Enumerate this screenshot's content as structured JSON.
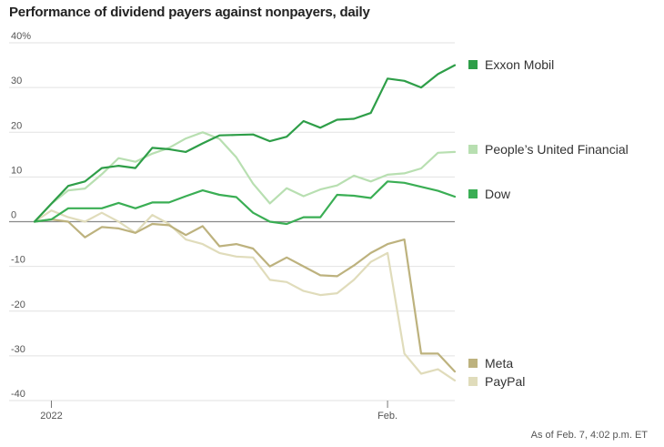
{
  "chart_data": {
    "type": "line",
    "title": "Performance of dividend payers against nonpayers, daily",
    "footnote": "As of Feb. 7, 4:02 p.m. ET",
    "ylim": [
      -40,
      40
    ],
    "yticks": [
      40,
      30,
      20,
      10,
      0,
      -10,
      -20,
      -30,
      -40
    ],
    "ytick_labels": [
      "40%",
      "30",
      "20",
      "10",
      "0",
      "-10",
      "-20",
      "-30",
      "-40"
    ],
    "xticks": [
      {
        "label": "2022",
        "index": 1
      },
      {
        "label": "Feb.",
        "index": 21
      }
    ],
    "x_count": 26,
    "series": [
      {
        "name": "Exxon Mobil",
        "color": "#2e9e48",
        "values": [
          0,
          4,
          8,
          9,
          12,
          12.5,
          12,
          16.5,
          16.2,
          15.6,
          17.5,
          19.3,
          19.4,
          19.5,
          18,
          19,
          22.5,
          21,
          22.8,
          23,
          24.3,
          32,
          31.5,
          30,
          33,
          35
        ]
      },
      {
        "name": "People’s United Financial",
        "color": "#b8dfb1",
        "values": [
          0,
          4,
          7,
          7.4,
          10.6,
          14.2,
          13.4,
          15.2,
          16.5,
          18.6,
          20,
          18.5,
          14.4,
          8.5,
          4.1,
          7.5,
          5.7,
          7.2,
          8.1,
          10.3,
          9,
          10.5,
          10.8,
          11.9,
          15.4,
          15.6
        ]
      },
      {
        "name": "Dow",
        "color": "#3aae54",
        "values": [
          0,
          0.5,
          3,
          3,
          3,
          4.2,
          3,
          4.3,
          4.3,
          5.7,
          7,
          6,
          5.5,
          2,
          0,
          -0.5,
          1,
          1,
          6,
          5.8,
          5.3,
          9,
          8.7,
          7.8,
          6.9,
          5.6
        ]
      },
      {
        "name": "Meta",
        "color": "#bdb27e",
        "values": [
          0,
          0.5,
          0,
          -3.5,
          -1.2,
          -1.5,
          -2.5,
          -0.5,
          -0.8,
          -3,
          -1,
          -5.5,
          -5,
          -6,
          -10,
          -8,
          -10,
          -12,
          -12.2,
          -9.8,
          -7,
          -5,
          -4,
          -29.5,
          -29.5,
          -33.5
        ]
      },
      {
        "name": "PayPal",
        "color": "#e0dcbb",
        "values": [
          0,
          2.5,
          1,
          0,
          2,
          0,
          -2.5,
          1.5,
          -0.5,
          -4,
          -5,
          -7,
          -7.8,
          -8,
          -13,
          -13.5,
          -15.5,
          -16.4,
          -16,
          -13,
          -9,
          -7,
          -29.5,
          -34,
          -33,
          -35.5
        ]
      }
    ]
  }
}
